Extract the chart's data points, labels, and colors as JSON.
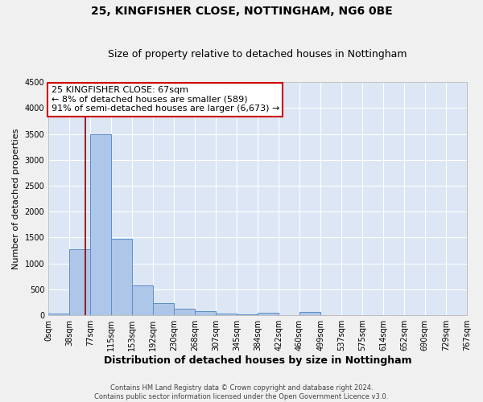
{
  "title1": "25, KINGFISHER CLOSE, NOTTINGHAM, NG6 0BE",
  "title2": "Size of property relative to detached houses in Nottingham",
  "xlabel": "Distribution of detached houses by size in Nottingham",
  "ylabel": "Number of detached properties",
  "footer1": "Contains HM Land Registry data © Crown copyright and database right 2024.",
  "footer2": "Contains public sector information licensed under the Open Government Licence v3.0.",
  "bin_labels": [
    "0sqm",
    "38sqm",
    "77sqm",
    "115sqm",
    "153sqm",
    "192sqm",
    "230sqm",
    "268sqm",
    "307sqm",
    "345sqm",
    "384sqm",
    "422sqm",
    "460sqm",
    "499sqm",
    "537sqm",
    "575sqm",
    "614sqm",
    "652sqm",
    "690sqm",
    "729sqm",
    "767sqm"
  ],
  "bar_values": [
    30,
    1280,
    3500,
    1480,
    570,
    240,
    125,
    80,
    30,
    20,
    50,
    0,
    60,
    0,
    0,
    0,
    0,
    0,
    0,
    0
  ],
  "bar_color": "#aec6e8",
  "bar_edge_color": "#5b8fc9",
  "background_color": "#dce6f5",
  "grid_color": "#ffffff",
  "vline_x": 67,
  "vline_color": "#8b0000",
  "bin_edges": [
    0,
    38,
    77,
    115,
    153,
    192,
    230,
    268,
    307,
    345,
    384,
    422,
    460,
    499,
    537,
    575,
    614,
    652,
    690,
    729,
    767
  ],
  "annotation_text": "25 KINGFISHER CLOSE: 67sqm\n← 8% of detached houses are smaller (589)\n91% of semi-detached houses are larger (6,673) →",
  "annotation_box_color": "#ffffff",
  "annotation_box_edge": "#cc0000",
  "ylim": [
    0,
    4500
  ],
  "yticks": [
    0,
    500,
    1000,
    1500,
    2000,
    2500,
    3000,
    3500,
    4000,
    4500
  ],
  "title1_fontsize": 10,
  "title2_fontsize": 9,
  "xlabel_fontsize": 9,
  "ylabel_fontsize": 8,
  "tick_fontsize": 7,
  "footer_fontsize": 6,
  "annot_fontsize": 8
}
